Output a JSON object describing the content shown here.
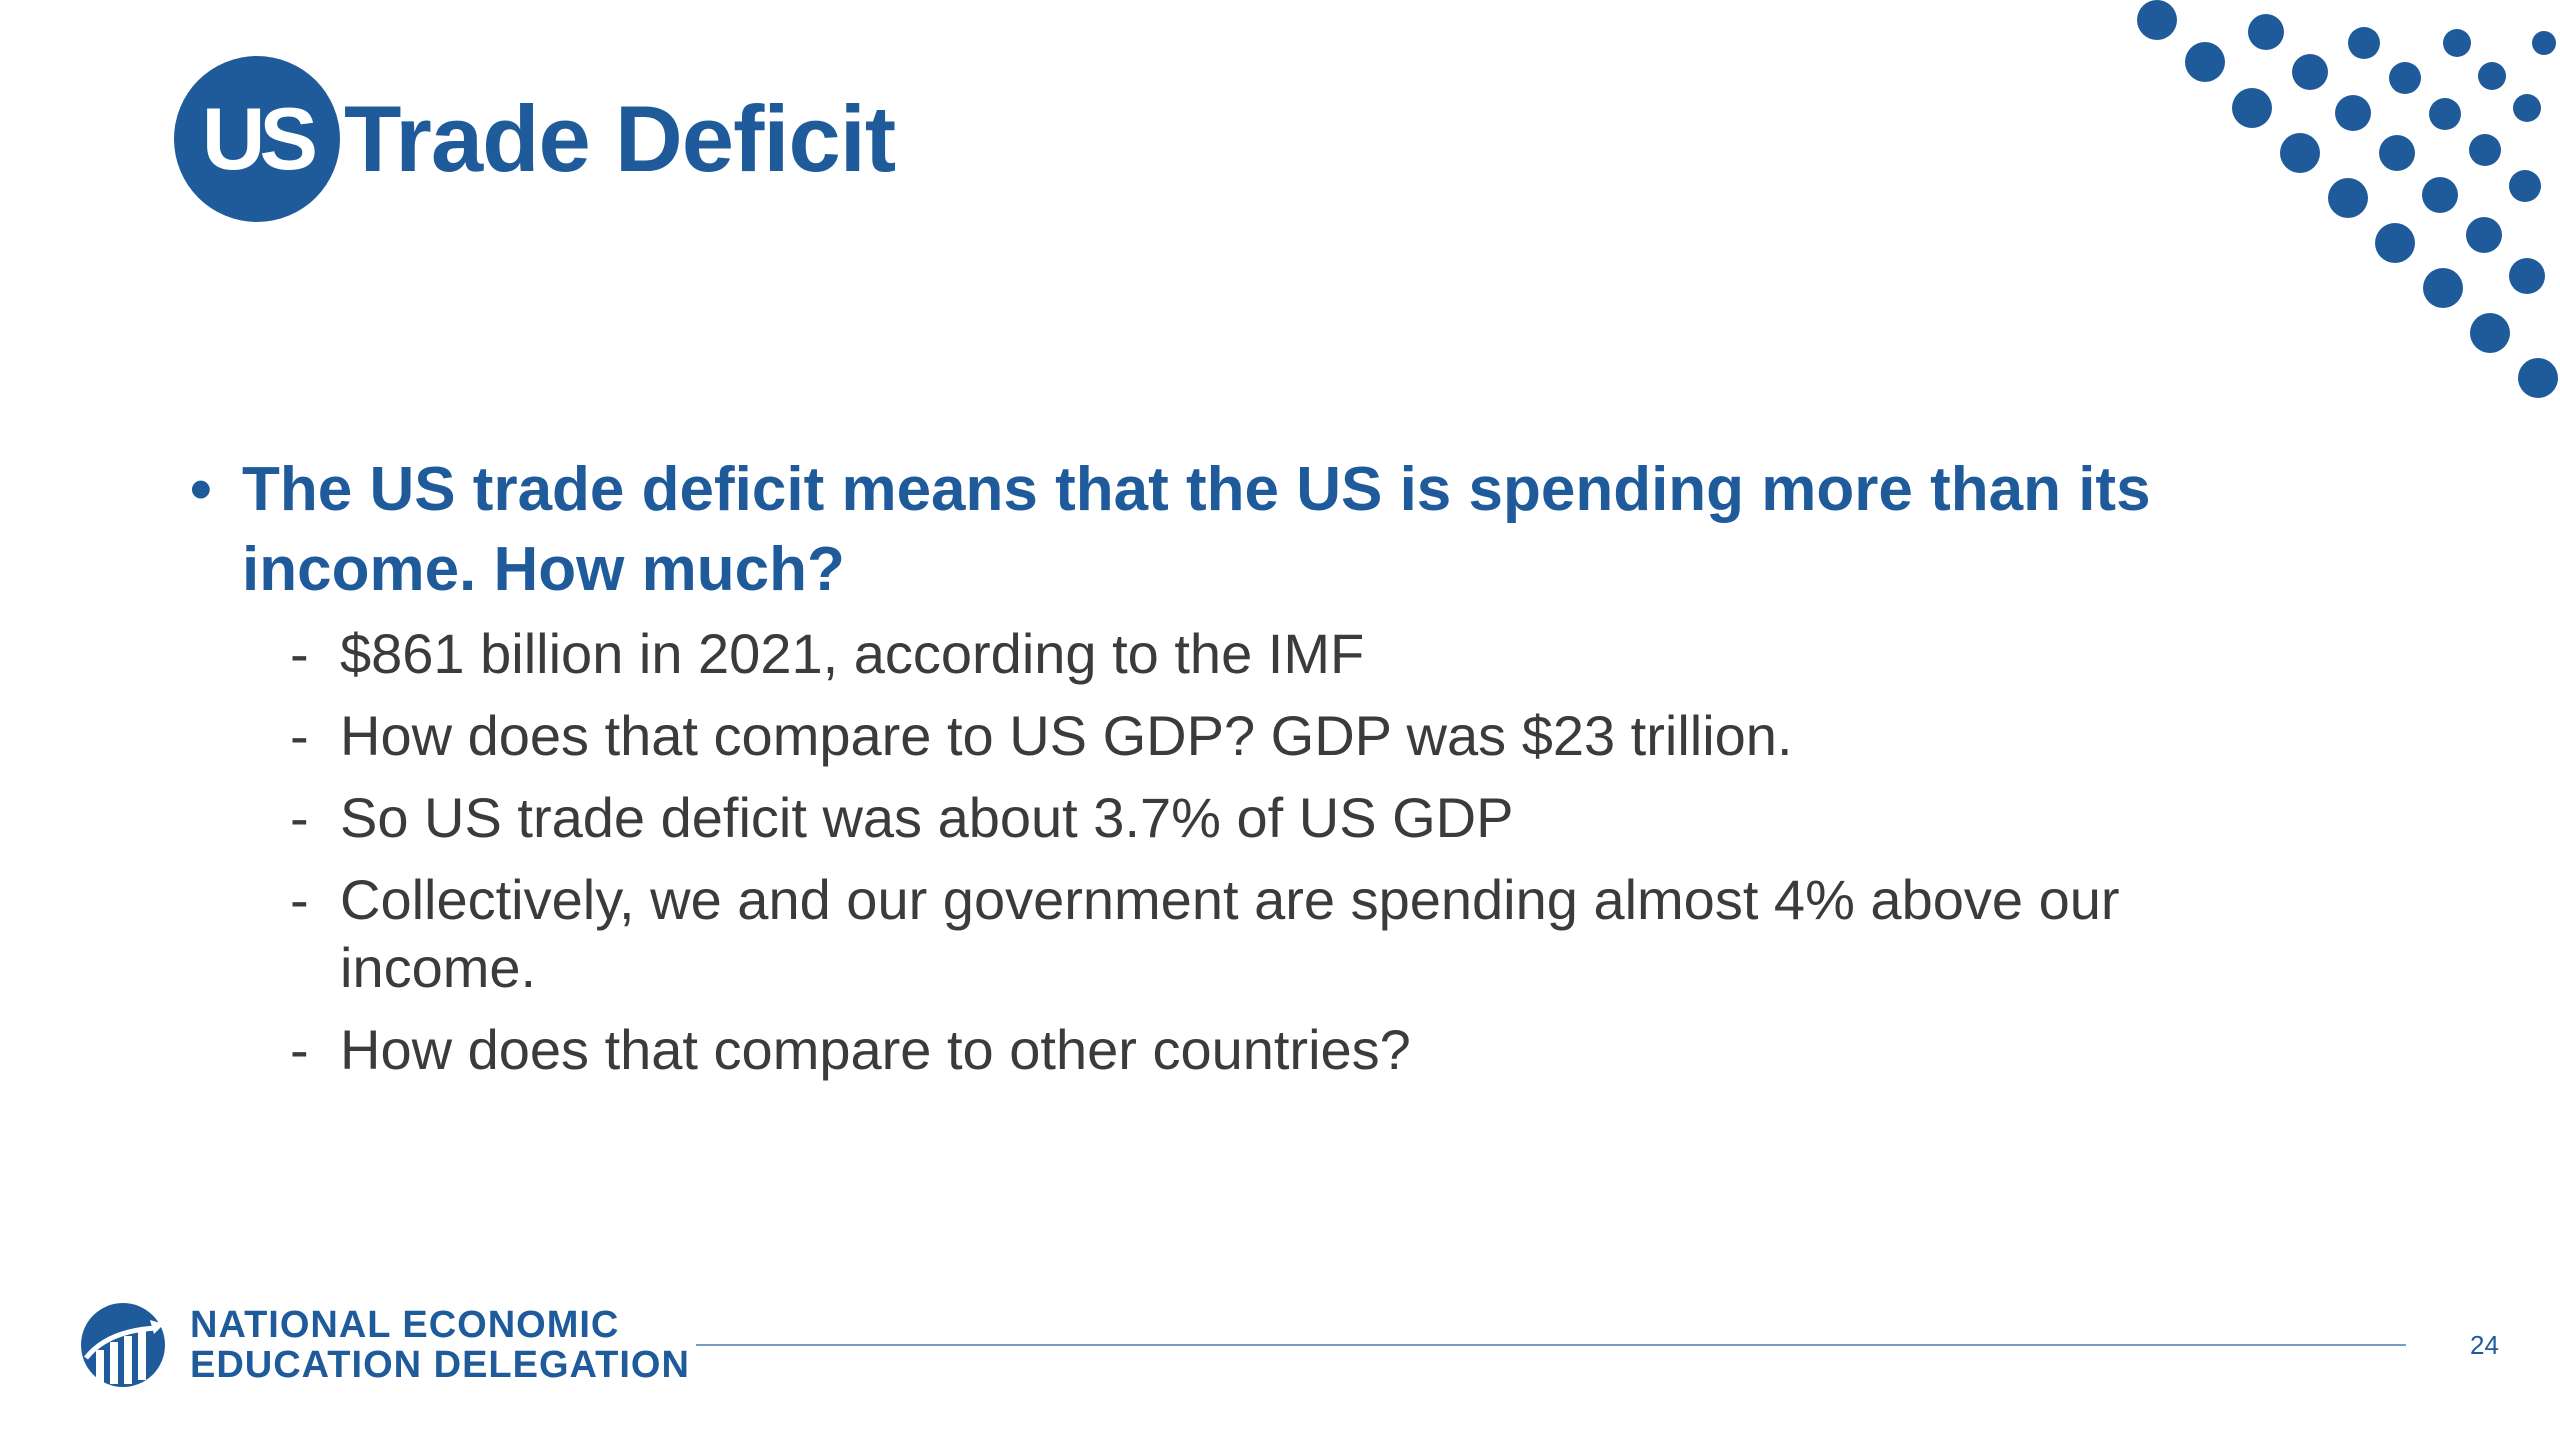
{
  "title": {
    "badge": "US",
    "text": "Trade Deficit"
  },
  "main_bullet": "The US trade deficit means that the US is spending more than its income.  How much?",
  "sub_items": [
    "$861 billion in 2021, according to the IMF",
    "How does that compare to US GDP?  GDP was $23 trillion.",
    "So US trade deficit was about 3.7% of US GDP",
    "Collectively, we and our government are spending almost 4% above our income.",
    "How does that compare to other countries?"
  ],
  "footer": {
    "org_line1": "NATIONAL ECONOMIC",
    "org_line2": "EDUCATION DELEGATION",
    "page_number": "24"
  },
  "colors": {
    "brand_blue": "#1f5b9a",
    "body_text": "#3b3b3b"
  }
}
